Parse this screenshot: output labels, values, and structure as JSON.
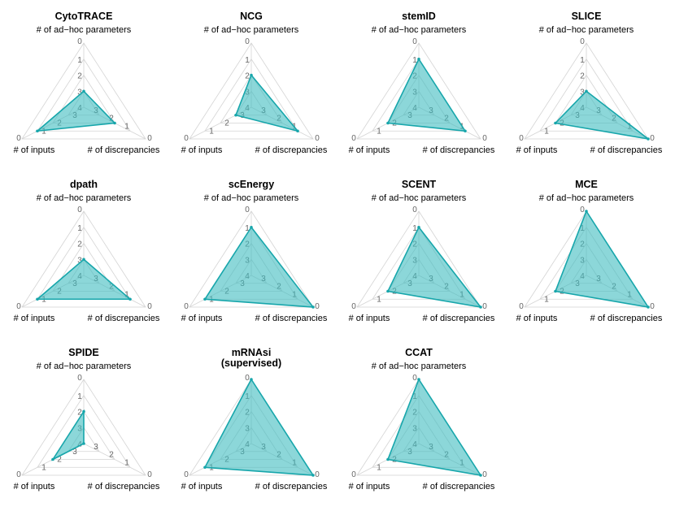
{
  "axis_labels": {
    "top": "# of ad−hoc parameters",
    "left": "# of inputs",
    "right": "# of discrepancies"
  },
  "colors": {
    "fill": "#3fbcbf",
    "stroke": "#17a6ab",
    "grid": "#d4d4d4",
    "tick": "#666666"
  },
  "chart_data": {
    "type": "radar",
    "axes": [
      "# of ad−hoc parameters",
      "# of discrepancies",
      "# of inputs"
    ],
    "scale_ticks": [
      "0",
      "1",
      "2",
      "3",
      "4"
    ],
    "note": "Each axis runs from 4 (centre) to 0 (outer vertex); smaller count = larger area.",
    "methods": [
      {
        "name": "CytoTRACE",
        "values": {
          "adhoc": 3,
          "discrepancies": 2,
          "inputs": 1
        }
      },
      {
        "name": "NCG",
        "values": {
          "adhoc": 2,
          "discrepancies": 1,
          "inputs": 3
        }
      },
      {
        "name": "stemID",
        "values": {
          "adhoc": 1,
          "discrepancies": 1,
          "inputs": 2
        }
      },
      {
        "name": "SLICE",
        "values": {
          "adhoc": 3,
          "discrepancies": 0,
          "inputs": 2
        }
      },
      {
        "name": "dpath",
        "values": {
          "adhoc": 3,
          "discrepancies": 1,
          "inputs": 1
        }
      },
      {
        "name": "scEnergy",
        "values": {
          "adhoc": 1,
          "discrepancies": 0,
          "inputs": 1
        }
      },
      {
        "name": "SCENT",
        "values": {
          "adhoc": 1,
          "discrepancies": 0,
          "inputs": 2
        }
      },
      {
        "name": "MCE",
        "values": {
          "adhoc": 0,
          "discrepancies": 0,
          "inputs": 2
        }
      },
      {
        "name": "SPIDE",
        "values": {
          "adhoc": 2,
          "discrepancies": 4,
          "inputs": 2
        }
      },
      {
        "name": "mRNAsi\n(supervised)",
        "values": {
          "adhoc": 0,
          "discrepancies": 0,
          "inputs": 1
        }
      },
      {
        "name": "CCAT",
        "values": {
          "adhoc": 0,
          "discrepancies": 0,
          "inputs": 2
        }
      }
    ]
  }
}
